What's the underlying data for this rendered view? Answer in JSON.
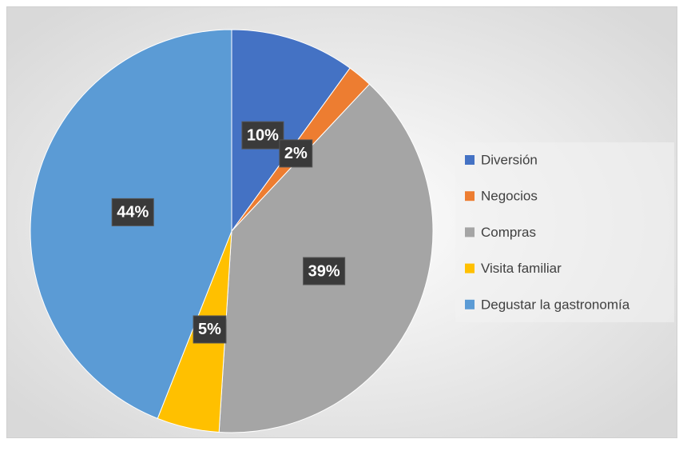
{
  "chart_data": {
    "type": "pie",
    "categories": [
      "Diversión",
      "Negocios",
      "Compras",
      "Visita familiar",
      "Degustar la gastronomía"
    ],
    "values": [
      10,
      2,
      39,
      5,
      44
    ],
    "value_labels": [
      "10%",
      "2%",
      "39%",
      "5%",
      "44%"
    ],
    "colors": [
      "#4472c4",
      "#ed7d31",
      "#a5a5a5",
      "#ffc000",
      "#5b9bd5"
    ],
    "legend": "right"
  }
}
